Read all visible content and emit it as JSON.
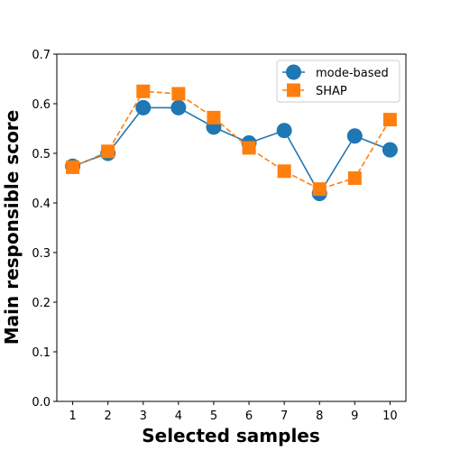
{
  "chart_data": {
    "type": "line",
    "title": "",
    "xlabel": "Selected samples",
    "ylabel": "Main responsible score",
    "x": [
      1,
      2,
      3,
      4,
      5,
      6,
      7,
      8,
      9,
      10
    ],
    "xticks": [
      "1",
      "2",
      "3",
      "4",
      "5",
      "6",
      "7",
      "8",
      "9",
      "10"
    ],
    "xlim": [
      0.55,
      10.45
    ],
    "ylim": [
      0.0,
      0.7
    ],
    "yticks": [
      "0.0",
      "0.1",
      "0.2",
      "0.3",
      "0.4",
      "0.5",
      "0.6",
      "0.7"
    ],
    "grid": false,
    "legend_position": "top-right",
    "series": [
      {
        "name": "mode-based",
        "color": "#1f77b4",
        "line_style": "solid",
        "marker": "circle",
        "values": [
          0.474,
          0.5,
          0.592,
          0.592,
          0.553,
          0.521,
          0.546,
          0.419,
          0.535,
          0.507
        ]
      },
      {
        "name": "SHAP",
        "color": "#ff7f0e",
        "line_style": "dashed",
        "marker": "square",
        "values": [
          0.472,
          0.504,
          0.625,
          0.62,
          0.572,
          0.511,
          0.464,
          0.428,
          0.45,
          0.568
        ]
      }
    ]
  }
}
